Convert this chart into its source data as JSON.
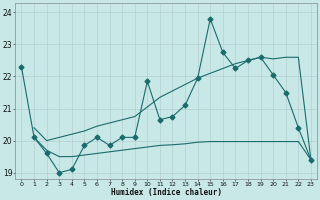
{
  "xlabel": "Humidex (Indice chaleur)",
  "background_color": "#c8e8e8",
  "grid_color": "#b0c8c8",
  "line_color": "#1a6b6b",
  "xlim": [
    -0.5,
    23.5
  ],
  "ylim": [
    18.8,
    24.3
  ],
  "xticks": [
    0,
    1,
    2,
    3,
    4,
    5,
    6,
    7,
    8,
    9,
    10,
    11,
    12,
    13,
    14,
    15,
    16,
    17,
    18,
    19,
    20,
    21,
    22,
    23
  ],
  "yticks": [
    19,
    20,
    21,
    22,
    23,
    24
  ],
  "s1_x": [
    0,
    1,
    2,
    3,
    4,
    5,
    6,
    7,
    8,
    9,
    10,
    11,
    12,
    13,
    14,
    15,
    16,
    17,
    18,
    19,
    20,
    21,
    22,
    23
  ],
  "s1_y": [
    22.3,
    20.1,
    19.6,
    19.0,
    19.1,
    19.85,
    20.1,
    19.85,
    20.1,
    20.1,
    21.85,
    20.65,
    20.75,
    21.1,
    21.95,
    23.8,
    22.75,
    22.25,
    22.5,
    22.6,
    22.05,
    21.5,
    20.4,
    19.4
  ],
  "s2_x": [
    1,
    2,
    3,
    4,
    5,
    6,
    7,
    8,
    9,
    10,
    11,
    12,
    13,
    14,
    15,
    16,
    17,
    18,
    19,
    20,
    21,
    22,
    23
  ],
  "s2_y": [
    20.1,
    19.7,
    19.5,
    19.5,
    19.55,
    19.6,
    19.65,
    19.7,
    19.75,
    19.8,
    19.85,
    19.87,
    19.9,
    19.95,
    19.97,
    19.97,
    19.97,
    19.97,
    19.97,
    19.97,
    19.97,
    19.97,
    19.4
  ],
  "s3_x": [
    1,
    2,
    3,
    4,
    5,
    6,
    7,
    8,
    9,
    10,
    11,
    12,
    13,
    14,
    15,
    16,
    17,
    18,
    19,
    20,
    21,
    22,
    23
  ],
  "s3_y": [
    20.4,
    20.0,
    20.1,
    20.2,
    20.3,
    20.45,
    20.55,
    20.65,
    20.75,
    21.05,
    21.35,
    21.55,
    21.75,
    21.95,
    22.1,
    22.25,
    22.4,
    22.5,
    22.6,
    22.55,
    22.6,
    22.6,
    19.4
  ],
  "marker_size": 2.5,
  "linewidth": 0.8
}
